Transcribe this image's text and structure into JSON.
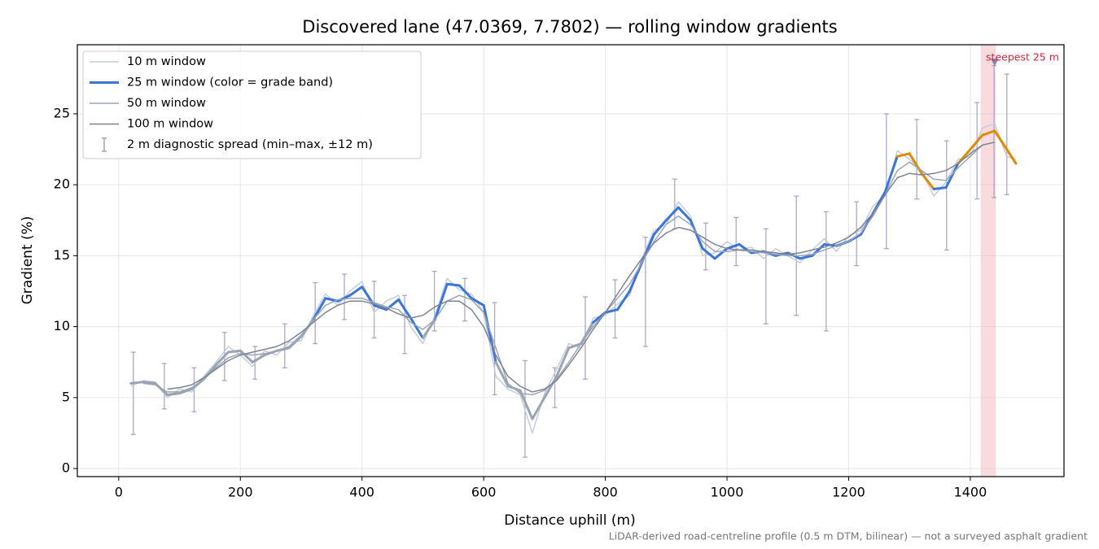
{
  "chart_data": {
    "type": "line",
    "title": "Discovered lane (47.0369, 7.7802) — rolling window gradients",
    "xlabel": "Distance uphill (m)",
    "ylabel": "Gradient (%)",
    "footnote": "LiDAR-derived road-centreline profile (0.5 m DTM, bilinear) — not a surveyed asphalt gradient",
    "xlim": [
      -68,
      1554
    ],
    "ylim": [
      -0.57,
      29.87
    ],
    "xticks": [
      0,
      200,
      400,
      600,
      800,
      1000,
      1200,
      1400
    ],
    "yticks": [
      0,
      5,
      10,
      15,
      20,
      25
    ],
    "grid": true,
    "legend": "upper left",
    "x": [
      20,
      40,
      60,
      80,
      100,
      120,
      140,
      160,
      180,
      200,
      220,
      240,
      260,
      280,
      300,
      320,
      340,
      360,
      380,
      400,
      420,
      440,
      460,
      480,
      500,
      520,
      540,
      560,
      580,
      600,
      620,
      640,
      660,
      680,
      700,
      720,
      740,
      760,
      780,
      800,
      820,
      840,
      860,
      880,
      900,
      920,
      940,
      960,
      980,
      1000,
      1020,
      1040,
      1060,
      1080,
      1100,
      1120,
      1140,
      1160,
      1180,
      1200,
      1220,
      1240,
      1260,
      1280,
      1300,
      1320,
      1340,
      1360,
      1380,
      1400,
      1420,
      1440,
      1460,
      1475
    ],
    "series": [
      {
        "name": "10 m window",
        "color": "#c5cdd8",
        "values": [
          5.8,
          6.2,
          6.1,
          5.0,
          5.6,
          5.4,
          6.5,
          7.5,
          8.6,
          8.0,
          7.2,
          8.3,
          8.0,
          8.9,
          9.0,
          10.8,
          12.3,
          11.5,
          12.5,
          13.2,
          11.0,
          11.8,
          12.2,
          10.0,
          8.8,
          10.8,
          13.4,
          12.6,
          12.3,
          11.0,
          6.5,
          5.6,
          5.2,
          2.5,
          5.3,
          7.0,
          8.8,
          8.5,
          10.6,
          10.8,
          11.6,
          12.2,
          14.8,
          16.8,
          17.2,
          18.8,
          17.8,
          15.0,
          15.2,
          16.0,
          15.4,
          15.6,
          14.8,
          15.5,
          15.0,
          14.5,
          15.4,
          16.2,
          15.3,
          16.4,
          16.8,
          18.5,
          19.2,
          22.4,
          21.8,
          21.0,
          19.2,
          20.2,
          21.8,
          22.0,
          24.0,
          24.3,
          22.0,
          21.8
        ]
      },
      {
        "name": "25 m window (color = grade band)",
        "color": "#3a76d8",
        "width": 3,
        "values": [
          6.0,
          6.1,
          6.0,
          5.2,
          5.3,
          5.6,
          6.3,
          7.3,
          8.2,
          8.3,
          7.5,
          8.0,
          8.3,
          8.5,
          9.3,
          10.5,
          12.0,
          11.8,
          12.2,
          12.8,
          11.5,
          11.2,
          11.9,
          10.6,
          9.2,
          10.5,
          13.0,
          12.9,
          12.0,
          11.5,
          7.5,
          5.8,
          5.5,
          3.5,
          5.0,
          6.5,
          8.5,
          8.8,
          10.3,
          11.0,
          11.2,
          12.5,
          14.5,
          16.5,
          17.5,
          18.4,
          17.5,
          15.5,
          14.8,
          15.5,
          15.8,
          15.2,
          15.3,
          15.0,
          15.2,
          14.8,
          15.0,
          15.8,
          15.7,
          16.0,
          16.5,
          18.0,
          19.5,
          22.0,
          22.2,
          20.8,
          19.7,
          19.8,
          21.5,
          22.5,
          23.5,
          23.8,
          22.5,
          21.5
        ],
        "colors": [
          "#9aa4b2",
          "#9aa4b2",
          "#9aa4b2",
          "#9aa4b2",
          "#9aa4b2",
          "#9aa4b2",
          "#9aa4b2",
          "#9aa4b2",
          "#9aa4b2",
          "#9aa4b2",
          "#9aa4b2",
          "#9aa4b2",
          "#9aa4b2",
          "#9aa4b2",
          "#9aa4b2",
          "#3a76d8",
          "#3a76d8",
          "#3a76d8",
          "#3a76d8",
          "#3a76d8",
          "#3a76d8",
          "#3a76d8",
          "#3a76d8",
          "#3a76d8",
          "#9aa4b2",
          "#3a76d8",
          "#3a76d8",
          "#3a76d8",
          "#3a76d8",
          "#3a76d8",
          "#9aa4b2",
          "#9aa4b2",
          "#9aa4b2",
          "#9aa4b2",
          "#9aa4b2",
          "#9aa4b2",
          "#9aa4b2",
          "#9aa4b2",
          "#3a76d8",
          "#3a76d8",
          "#3a76d8",
          "#3a76d8",
          "#3a76d8",
          "#3a76d8",
          "#3a76d8",
          "#3a76d8",
          "#3a76d8",
          "#3a76d8",
          "#3a76d8",
          "#3a76d8",
          "#3a76d8",
          "#3a76d8",
          "#3a76d8",
          "#3a76d8",
          "#3a76d8",
          "#3a76d8",
          "#3a76d8",
          "#3a76d8",
          "#3a76d8",
          "#3a76d8",
          "#3a76d8",
          "#3a76d8",
          "#3a76d8",
          "#e08a00",
          "#e08a00",
          "#e08a00",
          "#3a76d8",
          "#3a76d8",
          "#e08a00",
          "#e08a00",
          "#e08a00",
          "#e08a00",
          "#e08a00",
          "#e08a00"
        ]
      },
      {
        "name": "50 m window",
        "color": "#9aa6b6",
        "values": [
          null,
          6.0,
          5.9,
          5.4,
          5.4,
          5.7,
          6.3,
          7.1,
          7.8,
          8.1,
          8.0,
          8.1,
          8.3,
          8.6,
          9.4,
          10.5,
          11.5,
          11.9,
          12.0,
          12.0,
          11.7,
          11.4,
          11.2,
          10.3,
          9.8,
          10.5,
          11.8,
          12.2,
          11.9,
          11.0,
          8.5,
          6.0,
          5.3,
          5.2,
          5.5,
          6.3,
          7.5,
          8.8,
          10.0,
          11.0,
          12.0,
          13.0,
          14.5,
          16.0,
          17.2,
          17.8,
          17.2,
          16.0,
          15.3,
          15.3,
          15.4,
          15.3,
          15.2,
          15.1,
          15.0,
          15.0,
          15.1,
          15.4,
          15.7,
          16.0,
          16.6,
          17.8,
          19.3,
          21.0,
          21.6,
          21.0,
          20.4,
          20.3,
          21.2,
          22.0,
          22.8,
          23.0,
          null,
          null
        ]
      },
      {
        "name": "100 m window",
        "color": "#7e8592",
        "values": [
          null,
          null,
          null,
          5.6,
          5.7,
          5.9,
          6.4,
          7.0,
          7.6,
          8.0,
          8.2,
          8.4,
          8.6,
          9.0,
          9.6,
          10.3,
          11.0,
          11.5,
          11.8,
          11.8,
          11.6,
          11.3,
          10.9,
          10.6,
          10.8,
          11.4,
          11.8,
          11.8,
          11.2,
          10.0,
          8.0,
          6.5,
          5.8,
          5.4,
          5.6,
          6.2,
          7.3,
          8.5,
          9.8,
          11.0,
          12.3,
          13.6,
          14.8,
          15.9,
          16.6,
          17.0,
          16.8,
          16.3,
          15.8,
          15.5,
          15.4,
          15.4,
          15.3,
          15.2,
          15.1,
          15.2,
          15.4,
          15.6,
          15.9,
          16.3,
          17.0,
          18.0,
          19.3,
          20.5,
          20.8,
          20.7,
          20.8,
          21.0,
          21.5,
          22.2,
          22.8,
          23.0,
          null,
          null
        ]
      }
    ],
    "error_bars": {
      "name": "2 m diagnostic spread (min–max, ±12 m)",
      "color": "#9c93b8",
      "x": [
        24,
        75,
        124,
        174,
        224,
        273,
        323,
        371,
        420,
        470,
        519,
        569,
        618,
        668,
        717,
        767,
        816,
        866,
        914,
        965,
        1015,
        1064,
        1114,
        1163,
        1213,
        1262,
        1312,
        1361,
        1411,
        1439,
        1460
      ],
      "low": [
        2.4,
        4.2,
        4.0,
        6.2,
        6.3,
        7.1,
        8.8,
        10.5,
        9.2,
        8.1,
        9.7,
        10.4,
        5.2,
        0.8,
        4.3,
        6.3,
        9.2,
        8.6,
        16.9,
        14.0,
        14.3,
        10.2,
        10.8,
        9.7,
        14.3,
        15.5,
        19.0,
        15.4,
        19.0,
        19.1,
        19.3
      ],
      "high": [
        8.2,
        7.4,
        7.1,
        9.6,
        8.6,
        10.2,
        13.1,
        13.7,
        13.2,
        12.2,
        13.9,
        13.4,
        11.7,
        7.6,
        7.1,
        12.1,
        13.3,
        16.3,
        20.4,
        17.3,
        17.7,
        16.9,
        19.2,
        18.1,
        18.8,
        25.0,
        24.6,
        23.1,
        25.8,
        28.4,
        27.8
      ]
    },
    "highlight": {
      "label": "steepest 25 m",
      "x": [
        1417,
        1442
      ],
      "color": "#f2b8c0",
      "label_color": "#c8283c",
      "marker_x": 1440,
      "marker_y": 28.6,
      "marker_color": "#8e80aa"
    }
  }
}
